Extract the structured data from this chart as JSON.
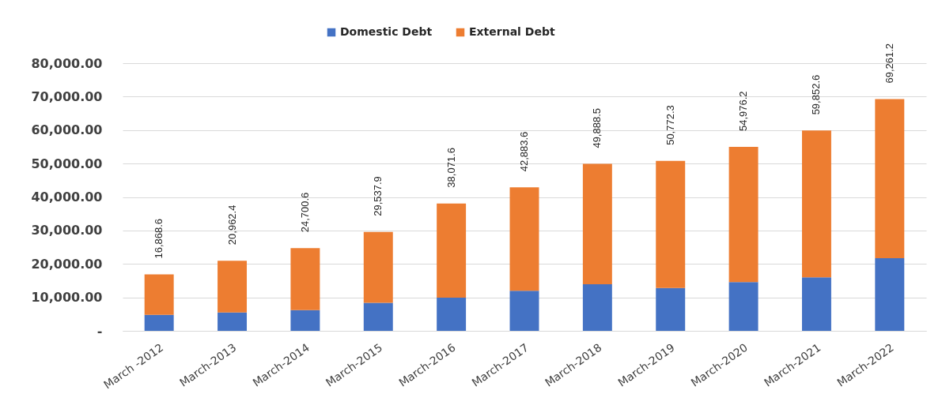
{
  "chart_data": {
    "type": "bar",
    "stacked": true,
    "categories": [
      "March -2012",
      "March-2013",
      "March-2014",
      "March-2015",
      "March-2016",
      "March-2017",
      "March-2018",
      "March-2019",
      "March-2020",
      "March-2021",
      "March-2022"
    ],
    "series": [
      {
        "name": "Domestic Debt",
        "color": "#4472c4",
        "values": [
          4800,
          5500,
          6200,
          8400,
          9900,
          12000,
          13900,
          12800,
          14600,
          16000,
          21700
        ]
      },
      {
        "name": "External Debt",
        "color": "#ed7d31",
        "values": [
          12068.6,
          15462.4,
          18500.6,
          21137.9,
          28171.6,
          30883.6,
          35988.5,
          37972.3,
          40376.2,
          43852.6,
          47561.2
        ]
      }
    ],
    "totals": [
      "16,868.6",
      "20,962.4",
      "24,700.6",
      "29,537.9",
      "38,071.6",
      "42,883.6",
      "49,888.5",
      "50,772.3",
      "54,976.2",
      "59,852.6",
      "69,261.2"
    ],
    "ylim": [
      0,
      80000
    ],
    "yticks": [
      {
        "value": 0,
        "label": "-"
      },
      {
        "value": 10000,
        "label": "10,000.00"
      },
      {
        "value": 20000,
        "label": "20,000.00"
      },
      {
        "value": 30000,
        "label": "30,000.00"
      },
      {
        "value": 40000,
        "label": "40,000.00"
      },
      {
        "value": 50000,
        "label": "50,000.00"
      },
      {
        "value": 60000,
        "label": "60,000.00"
      },
      {
        "value": 70000,
        "label": "70,000.00"
      },
      {
        "value": 80000,
        "label": "80,000.00"
      }
    ],
    "grid": "y",
    "legend": "top"
  }
}
